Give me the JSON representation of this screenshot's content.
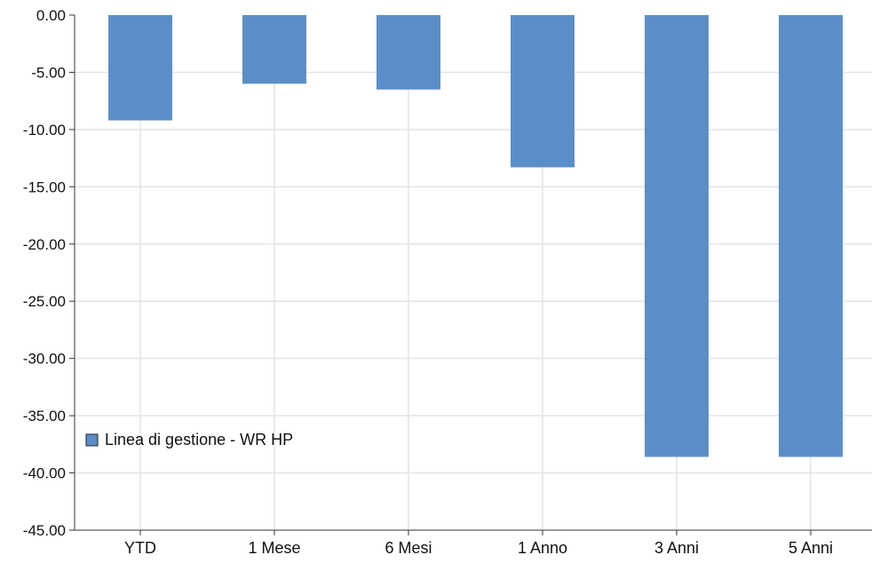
{
  "chart_data": {
    "type": "bar",
    "categories": [
      "YTD",
      "1 Mese",
      "6 Mesi",
      "1 Anno",
      "3 Anni",
      "5 Anni"
    ],
    "series": [
      {
        "name": "Linea di gestione - WR HP",
        "values": [
          -9.2,
          -6.0,
          -6.5,
          -13.3,
          -38.6,
          -38.6
        ]
      }
    ],
    "ylim": [
      -45,
      0
    ],
    "yticks": [
      "0.00",
      "-5.00",
      "-10.00",
      "-15.00",
      "-20.00",
      "-25.00",
      "-30.00",
      "-35.00",
      "-40.00",
      "-45.00"
    ],
    "grid": true,
    "legend_position": "bottom-left",
    "colors": {
      "bar": "#5b8ec9",
      "grid": "#e4e4e4",
      "axis": "#333333",
      "text": "#111111"
    }
  }
}
